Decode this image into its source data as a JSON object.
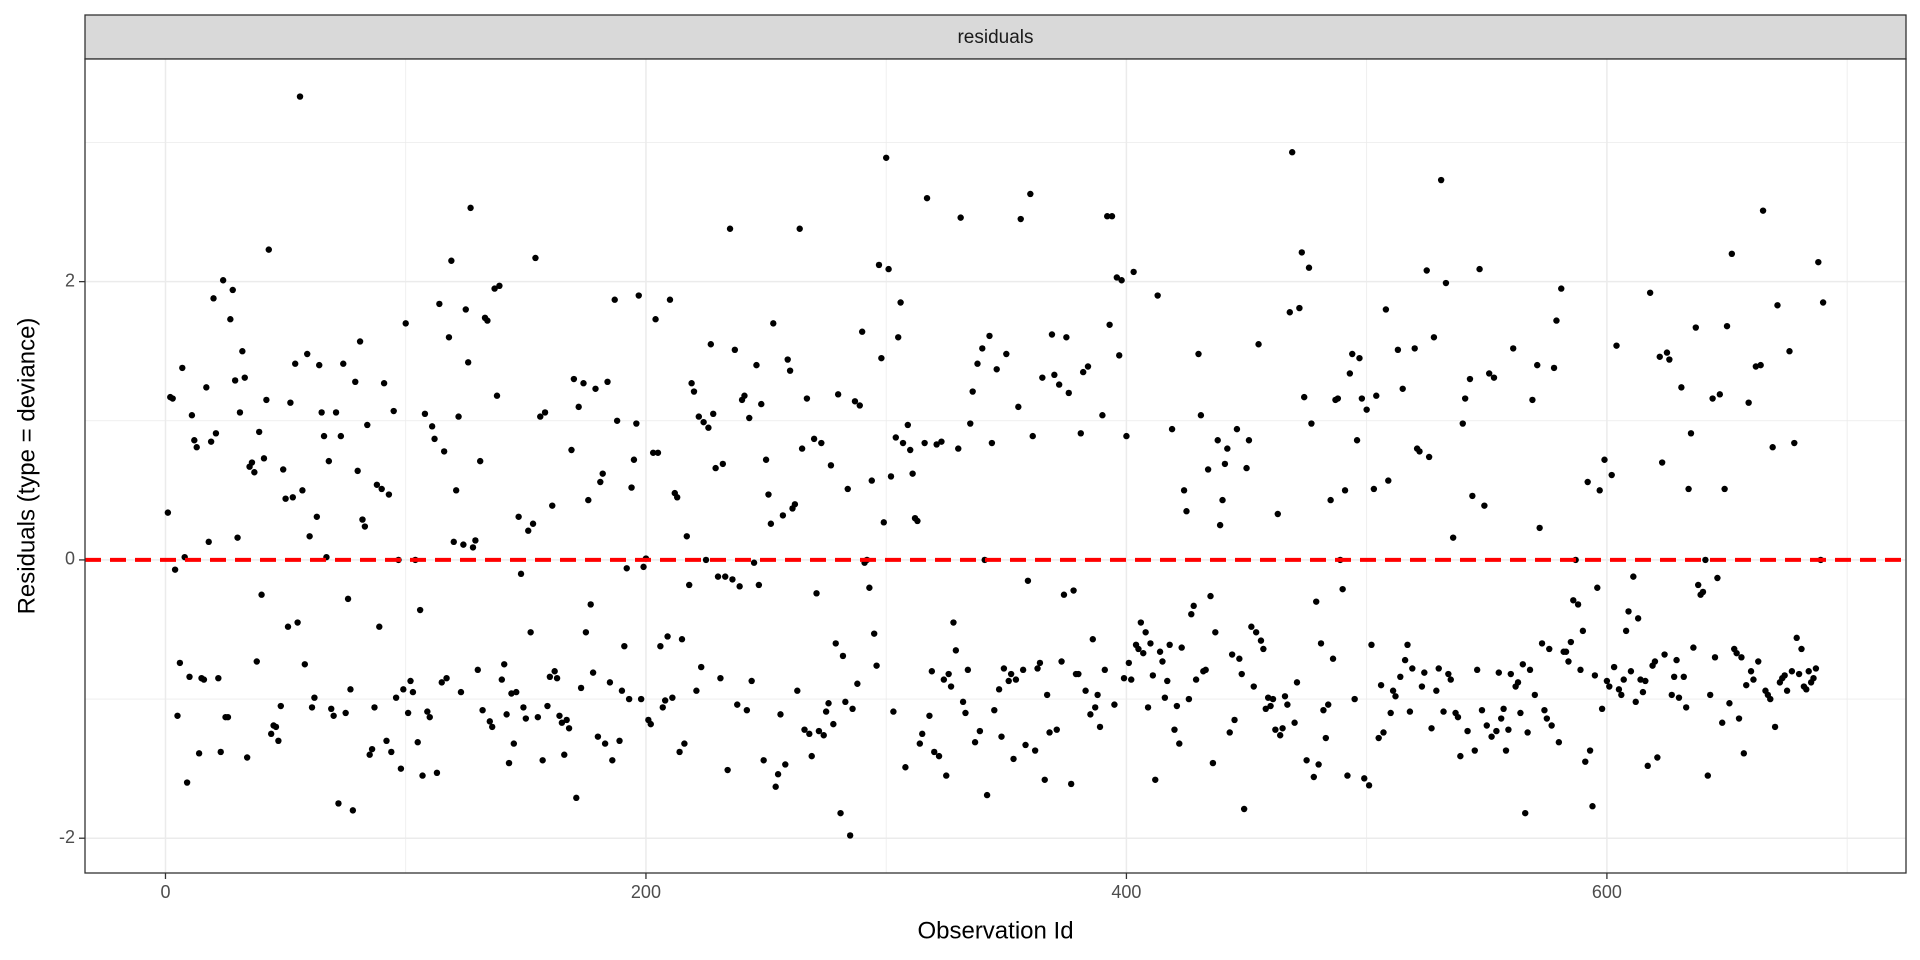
{
  "chart_data": {
    "type": "scatter",
    "strip_title": "residuals",
    "x_label": "Observation Id",
    "y_label": "Residuals (type = deviance)",
    "xlim": [
      -33.5,
      724.5
    ],
    "xticks": [
      0,
      200,
      400,
      600
    ],
    "xminor_ticks": [
      100,
      300,
      500,
      700
    ],
    "ylim": [
      -2.25,
      3.6
    ],
    "yticks": [
      -2,
      0,
      2
    ],
    "yminor_ticks": [
      -1,
      1,
      3
    ],
    "grid": true,
    "color": "#000000",
    "hline": {
      "value": 0,
      "color": "#ff0000"
    },
    "x": [
      1,
      2,
      3,
      4,
      5,
      6,
      7,
      8,
      9,
      10,
      11,
      12,
      13,
      14,
      15,
      16,
      17,
      18,
      19,
      20,
      21,
      22,
      23,
      24,
      25,
      26,
      27,
      28,
      29,
      30,
      31,
      32,
      33,
      34,
      35,
      36,
      37,
      38,
      39,
      40,
      41,
      42,
      43,
      44,
      45,
      46,
      47,
      48,
      49,
      50,
      51,
      52,
      53,
      54,
      55,
      56,
      57,
      58,
      59,
      60,
      61,
      62,
      63,
      64,
      65,
      66,
      67,
      68,
      69,
      70,
      71,
      72,
      73,
      74,
      75,
      76,
      77,
      78,
      79,
      80,
      81,
      82,
      83,
      84,
      85,
      86,
      87,
      88,
      89,
      90,
      91,
      92,
      93,
      94,
      95,
      96,
      97,
      98,
      99,
      100,
      101,
      102,
      103,
      104,
      105,
      106,
      107,
      108,
      109,
      110,
      111,
      112,
      113,
      114,
      115,
      116,
      117,
      118,
      119,
      120,
      121,
      122,
      123,
      124,
      125,
      126,
      127,
      128,
      129,
      130,
      131,
      132,
      133,
      134,
      135,
      136,
      137,
      138,
      139,
      140,
      141,
      142,
      143,
      144,
      145,
      146,
      147,
      148,
      149,
      150,
      151,
      152,
      153,
      154,
      155,
      156,
      157,
      158,
      159,
      160,
      161,
      162,
      163,
      164,
      165,
      166,
      167,
      168,
      169,
      170,
      171,
      172,
      173,
      174,
      175,
      176,
      177,
      178,
      179,
      180,
      181,
      182,
      183,
      184,
      185,
      186,
      187,
      188,
      189,
      190,
      191,
      192,
      193,
      194,
      195,
      196,
      197,
      198,
      199,
      200,
      201,
      202,
      203,
      204,
      205,
      206,
      207,
      208,
      209,
      210,
      211,
      212,
      213,
      214,
      215,
      216,
      217,
      218,
      219,
      220,
      221,
      222,
      223,
      224,
      225,
      226,
      227,
      228,
      229,
      230,
      231,
      232,
      233,
      234,
      235,
      236,
      237,
      238,
      239,
      240,
      241,
      242,
      243,
      244,
      245,
      246,
      247,
      248,
      249,
      250,
      251,
      252,
      253,
      254,
      255,
      256,
      257,
      258,
      259,
      260,
      261,
      262,
      263,
      264,
      265,
      266,
      267,
      268,
      269,
      270,
      271,
      272,
      273,
      274,
      275,
      276,
      277,
      278,
      279,
      280,
      281,
      282,
      283,
      284,
      285,
      286,
      287,
      288,
      289,
      290,
      291,
      292,
      293,
      294,
      295,
      296,
      297,
      298,
      299,
      300,
      301,
      302,
      303,
      304,
      305,
      306,
      307,
      308,
      309,
      310,
      311,
      312,
      313,
      314,
      315,
      316,
      317,
      318,
      319,
      320,
      321,
      322,
      323,
      324,
      325,
      326,
      327,
      328,
      329,
      330,
      331,
      332,
      333,
      334,
      335,
      336,
      337,
      338,
      339,
      340,
      341,
      342,
      343,
      344,
      345,
      346,
      347,
      348,
      349,
      350,
      351,
      352,
      353,
      354,
      355,
      356,
      357,
      358,
      359,
      360,
      361,
      362,
      363,
      364,
      365,
      366,
      367,
      368,
      369,
      370,
      371,
      372,
      373,
      374,
      375,
      376,
      377,
      378,
      379,
      380,
      381,
      382,
      383,
      384,
      385,
      386,
      387,
      388,
      389,
      390,
      391,
      392,
      393,
      394,
      395,
      396,
      397,
      398,
      399,
      400,
      401,
      402,
      403,
      404,
      405,
      406,
      407,
      408,
      409,
      410,
      411,
      412,
      413,
      414,
      415,
      416,
      417,
      418,
      419,
      420,
      421,
      422,
      423,
      424,
      425,
      426,
      427,
      428,
      429,
      430,
      431,
      432,
      433,
      434,
      435,
      436,
      437,
      438,
      439,
      440,
      441,
      442,
      443,
      444,
      445,
      446,
      447,
      448,
      449,
      450,
      451,
      452,
      453,
      454,
      455,
      456,
      457,
      458,
      459,
      460,
      461,
      462,
      463,
      464,
      465,
      466,
      467,
      468,
      469,
      470,
      471,
      472,
      473,
      474,
      475,
      476,
      477,
      478,
      479,
      480,
      481,
      482,
      483,
      484,
      485,
      486,
      487,
      488,
      489,
      490,
      491,
      492,
      493,
      494,
      495,
      496,
      497,
      498,
      499,
      500,
      501,
      502,
      503,
      504,
      505,
      506,
      507,
      508,
      509,
      510,
      511,
      512,
      513,
      514,
      515,
      516,
      517,
      518,
      519,
      520,
      521,
      522,
      523,
      524,
      525,
      526,
      527,
      528,
      529,
      530,
      531,
      532,
      533,
      534,
      535,
      536,
      537,
      538,
      539,
      540,
      541,
      542,
      543,
      544,
      545,
      546,
      547,
      548,
      549,
      550,
      551,
      552,
      553,
      554,
      555,
      556,
      557,
      558,
      559,
      560,
      561,
      562,
      563,
      564,
      565,
      566,
      567,
      568,
      569,
      570,
      571,
      572,
      573,
      574,
      575,
      576,
      577,
      578,
      579,
      580,
      581,
      582,
      583,
      584,
      585,
      586,
      587,
      588,
      589,
      590,
      591,
      592,
      593,
      594,
      595,
      596,
      597,
      598,
      599,
      600,
      601,
      602,
      603,
      604,
      605,
      606,
      607,
      608,
      609,
      610,
      611,
      612,
      613,
      614,
      615,
      616,
      617,
      618,
      619,
      620,
      621,
      622,
      623,
      624,
      625,
      626,
      627,
      628,
      629,
      630,
      631,
      632,
      633,
      634,
      635,
      636,
      637,
      638,
      639,
      640,
      641,
      642,
      643,
      644,
      645,
      646,
      647,
      648,
      649,
      650,
      651,
      652,
      653,
      654,
      655,
      656,
      657,
      658,
      659,
      660,
      661,
      662,
      663,
      664,
      665,
      666,
      667,
      668,
      669,
      670,
      671,
      672,
      673,
      674,
      675,
      676,
      677,
      678,
      679,
      680,
      681,
      682,
      683,
      684,
      685,
      686,
      687,
      688,
      689,
      690
    ],
    "values": [
      0.34,
      1.17,
      1.16,
      -0.07,
      -1.12,
      -0.74,
      1.38,
      0.02,
      -1.6,
      -0.84,
      1.04,
      0.86,
      0.81,
      -1.39,
      -0.85,
      -0.86,
      1.24,
      0.13,
      0.85,
      1.88,
      0.91,
      -0.85,
      -1.38,
      2.01,
      -1.13,
      -1.13,
      1.73,
      1.94,
      1.29,
      0.16,
      1.06,
      1.5,
      1.31,
      -1.42,
      0.67,
      0.7,
      0.63,
      -0.73,
      0.92,
      -0.25,
      0.73,
      1.15,
      2.23,
      -1.25,
      -1.19,
      -1.2,
      -1.3,
      -1.05,
      0.65,
      0.44,
      -0.48,
      1.13,
      0.45,
      1.41,
      -0.45,
      3.33,
      0.5,
      -0.75,
      1.48,
      0.17,
      -1.06,
      -0.99,
      0.31,
      1.4,
      1.06,
      0.89,
      0.02,
      0.71,
      -1.07,
      -1.12,
      1.06,
      -1.75,
      0.89,
      1.41,
      -1.1,
      -0.28,
      -0.93,
      -1.8,
      1.28,
      0.64,
      1.57,
      0.29,
      0.24,
      0.97,
      -1.4,
      -1.36,
      -1.06,
      0.54,
      -0.48,
      0.51,
      1.27,
      -1.3,
      0.47,
      -1.38,
      1.07,
      -0.99,
      0.0,
      -1.5,
      -0.93,
      1.7,
      -1.1,
      -0.87,
      -0.95,
      0.0,
      -1.31,
      -0.36,
      -1.55,
      1.05,
      -1.09,
      -1.13,
      0.96,
      0.87,
      -1.53,
      1.84,
      -0.88,
      0.78,
      -0.85,
      1.6,
      2.15,
      0.13,
      0.5,
      1.03,
      -0.95,
      0.11,
      1.8,
      1.42,
      2.53,
      0.09,
      0.14,
      -0.79,
      0.71,
      -1.08,
      1.74,
      1.72,
      -1.16,
      -1.2,
      1.95,
      1.18,
      1.97,
      -0.86,
      -0.75,
      -1.11,
      -1.46,
      -0.96,
      -1.32,
      -0.95,
      0.31,
      -0.1,
      -1.06,
      -1.14,
      0.21,
      -0.52,
      0.26,
      2.17,
      -1.13,
      1.03,
      -1.44,
      1.06,
      -1.05,
      -0.84,
      0.39,
      -0.8,
      -0.85,
      -1.12,
      -1.17,
      -1.4,
      -1.15,
      -1.21,
      0.79,
      1.3,
      -1.71,
      1.1,
      -0.92,
      1.27,
      -0.52,
      0.43,
      -0.32,
      -0.81,
      1.23,
      -1.27,
      0.56,
      0.62,
      -1.32,
      1.28,
      -0.88,
      -1.44,
      1.87,
      1.0,
      -1.3,
      -0.94,
      -0.62,
      -0.06,
      -1.0,
      0.52,
      0.72,
      0.98,
      1.9,
      -1.0,
      -0.05,
      0.01,
      -1.15,
      -1.18,
      0.77,
      1.73,
      0.77,
      -0.62,
      -1.06,
      -1.01,
      -0.55,
      1.87,
      -0.99,
      0.48,
      0.45,
      -1.38,
      -0.57,
      -1.32,
      0.17,
      -0.18,
      1.27,
      1.21,
      -0.94,
      1.03,
      -0.77,
      0.99,
      0.0,
      0.95,
      1.55,
      1.05,
      0.66,
      -0.12,
      -0.85,
      0.69,
      -0.12,
      -1.51,
      2.38,
      -0.14,
      1.51,
      -1.04,
      -0.19,
      1.15,
      1.18,
      -1.08,
      1.02,
      -0.87,
      -0.02,
      1.4,
      -0.18,
      1.12,
      -1.44,
      0.72,
      0.47,
      0.26,
      1.7,
      -1.63,
      -1.54,
      -1.11,
      0.32,
      -1.47,
      1.44,
      1.36,
      0.37,
      0.4,
      -0.94,
      2.38,
      0.8,
      -1.22,
      1.16,
      -1.25,
      -1.41,
      0.87,
      -0.24,
      -1.23,
      0.84,
      -1.26,
      -1.09,
      -1.03,
      0.68,
      -1.18,
      -0.6,
      1.19,
      -1.82,
      -0.69,
      -1.02,
      0.51,
      -1.98,
      -1.07,
      1.14,
      -0.89,
      1.11,
      1.64,
      -0.02,
      0.0,
      -0.2,
      0.57,
      -0.53,
      -0.76,
      2.12,
      1.45,
      0.27,
      2.89,
      2.09,
      0.6,
      -1.09,
      0.88,
      1.6,
      1.85,
      0.84,
      -1.49,
      0.97,
      0.79,
      0.62,
      0.3,
      0.28,
      -1.32,
      -1.25,
      0.84,
      2.6,
      -1.12,
      -0.8,
      -1.38,
      0.83,
      -1.41,
      0.85,
      -0.86,
      -1.55,
      -0.82,
      -0.91,
      -0.45,
      -0.65,
      0.8,
      2.46,
      -1.02,
      -1.1,
      -0.79,
      0.98,
      1.21,
      -1.31,
      1.41,
      -1.23,
      1.52,
      0.0,
      -1.69,
      1.61,
      0.84,
      -1.08,
      1.37,
      -0.93,
      -1.27,
      -0.78,
      1.48,
      -0.87,
      -0.82,
      -1.43,
      -0.86,
      1.1,
      2.45,
      -0.79,
      -1.33,
      -0.15,
      2.63,
      0.89,
      -1.37,
      -0.78,
      -0.74,
      1.31,
      -1.58,
      -0.97,
      -1.24,
      1.62,
      1.33,
      -1.22,
      1.26,
      -0.73,
      -0.25,
      1.6,
      1.2,
      -1.61,
      -0.22,
      -0.82,
      -0.82,
      0.91,
      1.35,
      -0.94,
      1.39,
      -1.11,
      -0.57,
      -1.06,
      -0.97,
      -1.2,
      1.04,
      -0.79,
      2.47,
      1.69,
      2.47,
      -1.04,
      2.03,
      1.47,
      2.01,
      -0.85,
      0.89,
      -0.74,
      -0.86,
      2.07,
      -0.61,
      -0.64,
      -0.45,
      -0.67,
      -0.52,
      -1.06,
      -0.6,
      -0.83,
      -1.58,
      1.9,
      -0.66,
      -0.73,
      -0.99,
      -0.87,
      -0.61,
      0.94,
      -1.22,
      -1.05,
      -1.32,
      -0.63,
      0.5,
      0.35,
      -1.0,
      -0.39,
      -0.33,
      -0.86,
      1.48,
      1.04,
      -0.8,
      -0.79,
      0.65,
      -0.26,
      -1.46,
      -0.52,
      0.86,
      0.25,
      0.43,
      0.69,
      0.8,
      -1.24,
      -0.68,
      -1.15,
      0.94,
      -0.71,
      -0.82,
      -1.79,
      0.66,
      0.86,
      -0.48,
      -0.91,
      -0.52,
      1.55,
      -0.58,
      -0.64,
      -1.07,
      -0.99,
      -1.05,
      -1.0,
      -1.22,
      0.33,
      -1.26,
      -1.21,
      -0.98,
      -1.04,
      1.78,
      2.93,
      -1.17,
      -0.88,
      1.81,
      2.21,
      1.17,
      -1.44,
      2.1,
      0.98,
      -1.56,
      -0.3,
      -1.47,
      -0.6,
      -1.08,
      -1.28,
      -1.04,
      0.43,
      -0.71,
      1.15,
      1.16,
      0.0,
      -0.21,
      0.5,
      -1.55,
      1.34,
      1.48,
      -1.0,
      0.86,
      1.45,
      1.16,
      -1.57,
      1.08,
      -1.62,
      -0.61,
      0.51,
      1.18,
      -1.28,
      -0.9,
      -1.24,
      1.8,
      0.57,
      -1.1,
      -0.94,
      -0.98,
      1.51,
      -0.84,
      1.23,
      -0.72,
      -0.61,
      -1.09,
      -0.78,
      1.52,
      0.8,
      0.78,
      -0.91,
      -0.81,
      2.08,
      0.74,
      -1.21,
      1.6,
      -0.94,
      -0.78,
      2.73,
      -1.09,
      1.99,
      -0.82,
      -0.86,
      0.16,
      -1.1,
      -1.13,
      -1.41,
      0.98,
      1.16,
      -1.23,
      1.3,
      0.46,
      -1.37,
      -0.79,
      2.09,
      -1.08,
      0.39,
      -1.19,
      1.34,
      -1.27,
      1.31,
      -1.23,
      -0.81,
      -1.14,
      -1.07,
      -1.37,
      -1.22,
      -0.82,
      1.52,
      -0.91,
      -0.88,
      -1.1,
      -0.75,
      -1.82,
      -1.24,
      -0.79,
      1.15,
      -0.97,
      1.4,
      0.23,
      -0.6,
      -1.08,
      -1.14,
      -0.64,
      -1.19,
      1.38,
      1.72,
      -1.31,
      1.95,
      -0.66,
      -0.66,
      -0.73,
      -0.59,
      -0.29,
      0.0,
      -0.32,
      -0.79,
      -0.51,
      -1.45,
      0.56,
      -1.37,
      -1.77,
      -0.83,
      -0.2,
      0.5,
      -1.07,
      0.72,
      -0.87,
      -0.91,
      0.61,
      -0.77,
      1.54,
      -0.93,
      -0.97,
      -0.86,
      -0.51,
      -0.37,
      -0.8,
      -0.12,
      -1.02,
      -0.42,
      -0.86,
      -0.95,
      -0.87,
      -1.48,
      1.92,
      -0.76,
      -0.73,
      -1.42,
      1.46,
      0.7,
      -0.68,
      1.49,
      1.44,
      -0.97,
      -0.84,
      -0.72,
      -0.99,
      1.24,
      -0.84,
      -1.06,
      0.51,
      0.91,
      -0.63,
      1.67,
      -0.18,
      -0.25,
      -0.23,
      0.0,
      -1.55,
      -0.97,
      1.16,
      -0.7,
      -0.13,
      1.19,
      -1.17,
      0.51,
      1.68,
      -1.03,
      2.2,
      -0.64,
      -0.67,
      -1.14,
      -0.7,
      -1.39,
      -0.9,
      1.13,
      -0.8,
      -0.86,
      1.39,
      -0.73,
      1.4,
      2.51,
      -0.94,
      -0.97,
      -1.0,
      0.81,
      -1.2,
      1.83,
      -0.88,
      -0.85,
      -0.83,
      -0.94,
      1.5,
      -0.8,
      0.84,
      -0.56,
      -0.82,
      -0.64,
      -0.91,
      -0.93,
      -0.8,
      -0.88,
      -0.85,
      -0.78,
      2.14,
      0.0,
      1.85
    ]
  }
}
